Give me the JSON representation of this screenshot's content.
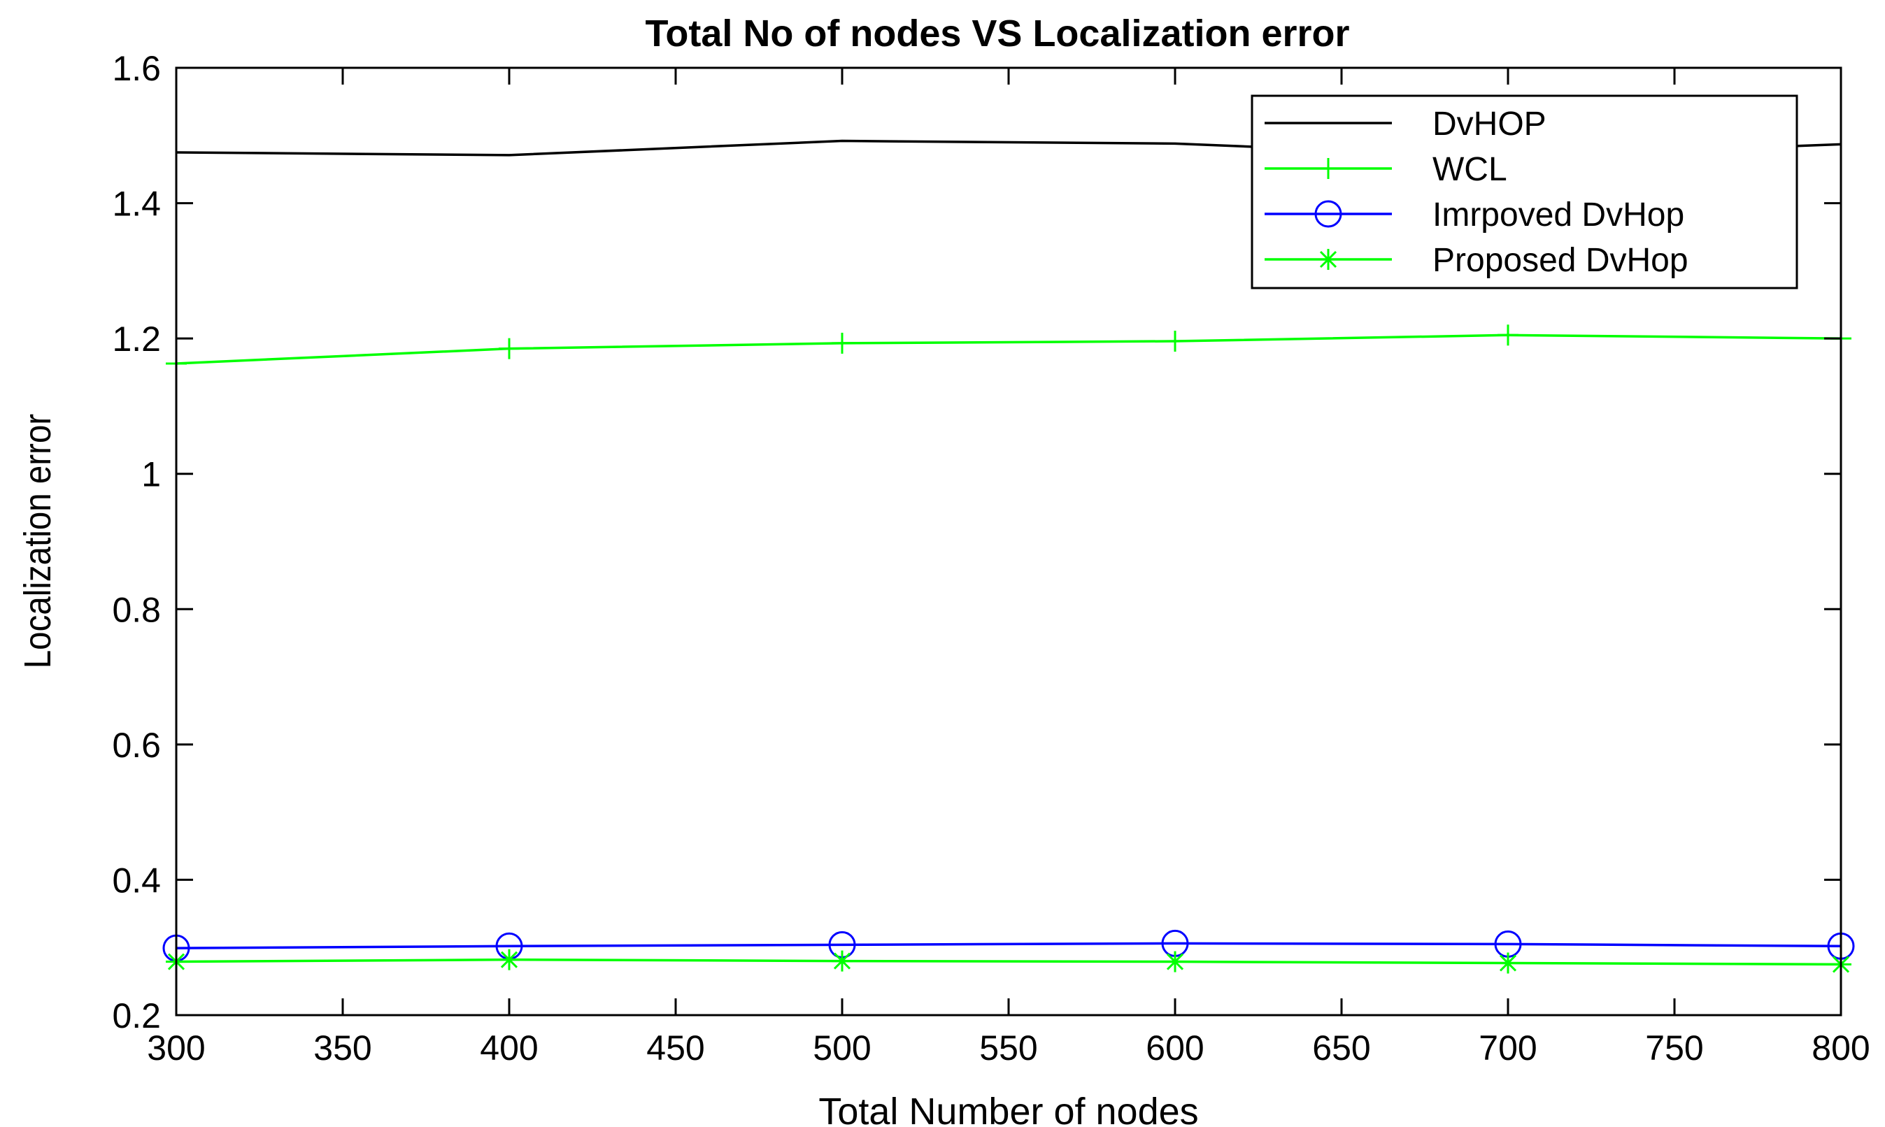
{
  "chart_data": {
    "type": "line",
    "title": "Total No of nodes  VS Localization error",
    "xlabel": "Total Number of nodes",
    "ylabel": "Localization error",
    "xlim": [
      300,
      800
    ],
    "ylim": [
      0.2,
      1.6
    ],
    "xticks": [
      300,
      350,
      400,
      450,
      500,
      550,
      600,
      650,
      700,
      750,
      800
    ],
    "xtick_labels": [
      "300",
      "350",
      "400",
      "450",
      "500",
      "550",
      "600",
      "650",
      "700",
      "750",
      "800"
    ],
    "yticks": [
      0.2,
      0.4,
      0.6,
      0.8,
      1.0,
      1.2,
      1.4,
      1.6
    ],
    "ytick_labels": [
      "0.2",
      "0.4",
      "0.6",
      "0.8",
      "1",
      "1.2",
      "1.4",
      "1.6"
    ],
    "grid": false,
    "legend_position": "top-right",
    "x": [
      300,
      400,
      500,
      600,
      700,
      800
    ],
    "series": [
      {
        "name": "DvHOP",
        "color": "#000000",
        "marker": "none",
        "values": [
          1.475,
          1.471,
          1.492,
          1.488,
          1.468,
          1.487
        ]
      },
      {
        "name": "WCL",
        "color": "#00ff00",
        "marker": "plus",
        "values": [
          1.163,
          1.185,
          1.193,
          1.196,
          1.205,
          1.2
        ]
      },
      {
        "name": "Imrpoved DvHop",
        "color": "#0000ff",
        "marker": "circle",
        "values": [
          0.299,
          0.302,
          0.304,
          0.306,
          0.305,
          0.302
        ]
      },
      {
        "name": "Proposed DvHop",
        "color": "#00ff00",
        "marker": "star",
        "values": [
          0.279,
          0.282,
          0.28,
          0.279,
          0.277,
          0.275
        ]
      }
    ]
  }
}
